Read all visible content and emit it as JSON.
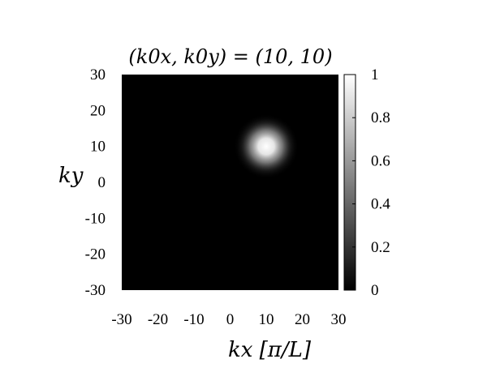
{
  "chart_data": {
    "type": "heatmap",
    "title": "(k0x, k0y) = (10, 10)",
    "xlabel": "kx [π/L]",
    "ylabel": "ky",
    "xlim": [
      -30,
      30
    ],
    "ylim": [
      -30,
      30
    ],
    "x_ticks": [
      "-30",
      "-20",
      "-10",
      "0",
      "10",
      "20",
      "30"
    ],
    "y_ticks": [
      "30",
      "20",
      "10",
      "0",
      "-10",
      "-20",
      "-30"
    ],
    "colorbar": {
      "range": [
        0,
        1
      ],
      "ticks": [
        "1",
        "0.8",
        "0.6",
        "0.4",
        "0.2",
        "0"
      ],
      "colormap": "grayscale"
    },
    "peak": {
      "kx": 10,
      "ky": 10,
      "value": 1,
      "width": 3
    },
    "background": "#000000",
    "grid": false
  }
}
